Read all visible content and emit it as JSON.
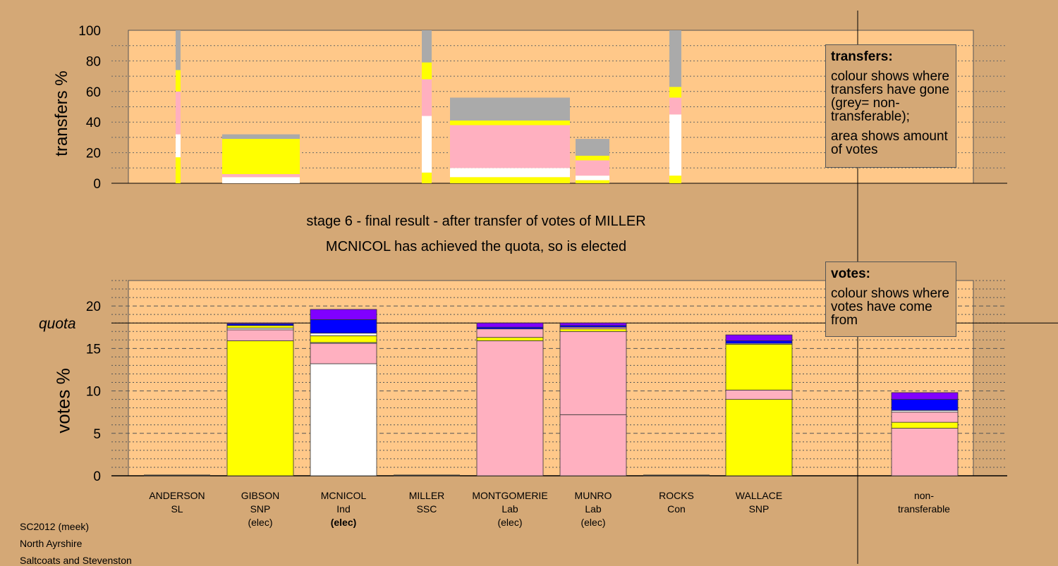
{
  "meta": {
    "line1": "SC2012 (meek)",
    "line2": "North Ayrshire",
    "line3": "Saltcoats and Stevenston"
  },
  "header": {
    "stage": "stage 6 - final result - after transfer of votes of MILLER",
    "status": "MCNICOL has achieved the quota, so is elected"
  },
  "legend_transfers": {
    "title": "transfers:",
    "line1": "colour shows where transfers have gone (grey= non-transferable);",
    "line2": "area shows amount of votes"
  },
  "legend_votes": {
    "title": "votes:",
    "line1": "colour shows where votes have come from"
  },
  "colors": {
    "Ind": "#ffffff",
    "SNP": "#ffff00",
    "Lab": "#ffb0c0",
    "Con": "#0000ff",
    "SSC": "#8000ff",
    "SL": "#b00000",
    "NT": "#aaaaaa",
    "panel": "#ffc889",
    "bg": "#d4a876"
  },
  "chart_data": [
    {
      "type": "bar",
      "stacked": true,
      "ylabel": "transfers %",
      "ylim": [
        0,
        100
      ],
      "yticks": [
        0,
        20,
        40,
        60,
        80,
        100
      ],
      "note": "bar width shows amount of votes transferred",
      "bars": [
        {
          "segments": [
            {
              "party": "SNP",
              "value": 17
            },
            {
              "party": "Ind",
              "value": 15
            },
            {
              "party": "Lab",
              "value": 28
            },
            {
              "party": "SNP",
              "value": 14
            },
            {
              "party": "NT",
              "value": 26
            }
          ]
        },
        {
          "segments": [
            {
              "party": "Ind",
              "value": 4
            },
            {
              "party": "Lab",
              "value": 2
            },
            {
              "party": "SNP",
              "value": 23
            },
            {
              "party": "NT",
              "value": 3
            }
          ]
        },
        {
          "segments": [
            {
              "party": "SNP",
              "value": 7
            },
            {
              "party": "Ind",
              "value": 37
            },
            {
              "party": "Lab",
              "value": 24
            },
            {
              "party": "SNP",
              "value": 11
            },
            {
              "party": "NT",
              "value": 21
            }
          ]
        },
        {
          "segments": [
            {
              "party": "SNP",
              "value": 4
            },
            {
              "party": "Ind",
              "value": 6
            },
            {
              "party": "Lab",
              "value": 28
            },
            {
              "party": "SNP",
              "value": 3
            },
            {
              "party": "NT",
              "value": 15
            }
          ]
        },
        {
          "segments": [
            {
              "party": "SNP",
              "value": 2
            },
            {
              "party": "Ind",
              "value": 3
            },
            {
              "party": "Lab",
              "value": 10
            },
            {
              "party": "SNP",
              "value": 3
            },
            {
              "party": "NT",
              "value": 11
            }
          ]
        },
        {
          "segments": [
            {
              "party": "SNP",
              "value": 5
            },
            {
              "party": "Ind",
              "value": 40
            },
            {
              "party": "Lab",
              "value": 11
            },
            {
              "party": "SNP",
              "value": 7
            },
            {
              "party": "NT",
              "value": 37
            }
          ]
        }
      ]
    },
    {
      "type": "bar",
      "stacked": true,
      "ylabel": "votes %",
      "ylim": [
        0,
        23
      ],
      "yticks": [
        0,
        5,
        10,
        15,
        20
      ],
      "quota": 18,
      "quota_label": "quota",
      "categories": [
        {
          "name": "ANDERSON",
          "party": "SL",
          "note": ""
        },
        {
          "name": "GIBSON",
          "party": "SNP",
          "note": "(elec)"
        },
        {
          "name": "MCNICOL",
          "party": "Ind",
          "note": "(elec)"
        },
        {
          "name": "MILLER",
          "party": "SSC",
          "note": ""
        },
        {
          "name": "MONTGOMERIE",
          "party": "Lab",
          "note": "(elec)"
        },
        {
          "name": "MUNRO",
          "party": "Lab",
          "note": "(elec)"
        },
        {
          "name": "ROCKS",
          "party": "Con",
          "note": ""
        },
        {
          "name": "WALLACE",
          "party": "SNP",
          "note": ""
        }
      ],
      "nontransferable_label": "non- transferable",
      "stacks": [
        [],
        [
          {
            "party": "SNP",
            "value": 15.9
          },
          {
            "party": "Lab",
            "value": 1.3
          },
          {
            "party": "Ind",
            "value": 0.2
          },
          {
            "party": "SNP",
            "value": 0.3
          },
          {
            "party": "Con",
            "value": 0.2
          },
          {
            "party": "SSC",
            "value": 0.1
          }
        ],
        [
          {
            "party": "Ind",
            "value": 13.2
          },
          {
            "party": "Lab",
            "value": 2.4
          },
          {
            "party": "Ind",
            "value": 0.1
          },
          {
            "party": "SNP",
            "value": 0.8
          },
          {
            "party": "Ind",
            "value": 0.3
          },
          {
            "party": "Con",
            "value": 1.6
          },
          {
            "party": "SSC",
            "value": 1.2
          }
        ],
        [],
        [
          {
            "party": "Lab",
            "value": 15.9
          },
          {
            "party": "SNP",
            "value": 0.4
          },
          {
            "party": "Lab",
            "value": 1.0
          },
          {
            "party": "Con",
            "value": 0.2
          },
          {
            "party": "SSC",
            "value": 0.5
          }
        ],
        [
          {
            "party": "Lab",
            "value": 7.2
          },
          {
            "party": "Lab",
            "value": 9.8
          },
          {
            "party": "SNP",
            "value": 0.3
          },
          {
            "party": "Lab",
            "value": 0.2
          },
          {
            "party": "Con",
            "value": 0.2
          },
          {
            "party": "SSC",
            "value": 0.3
          }
        ],
        [],
        [
          {
            "party": "SNP",
            "value": 9.0
          },
          {
            "party": "Lab",
            "value": 1.1
          },
          {
            "party": "SNP",
            "value": 5.4
          },
          {
            "party": "Ind",
            "value": 0.1
          },
          {
            "party": "Con",
            "value": 0.3
          },
          {
            "party": "SSC",
            "value": 0.7
          }
        ],
        [
          {
            "party": "Lab",
            "value": 5.6
          },
          {
            "party": "SNP",
            "value": 0.7
          },
          {
            "party": "Lab",
            "value": 1.2
          },
          {
            "party": "Ind",
            "value": 0.2
          },
          {
            "party": "Con",
            "value": 1.3
          },
          {
            "party": "SSC",
            "value": 0.8
          }
        ]
      ]
    }
  ]
}
